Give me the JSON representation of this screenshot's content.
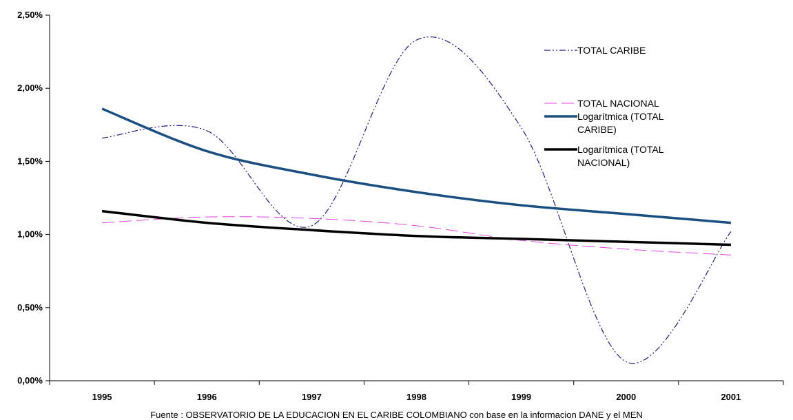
{
  "chart_data": {
    "type": "line",
    "categories": [
      "1995",
      "1996",
      "1997",
      "1998",
      "1999",
      "2000",
      "2001"
    ],
    "y_ticks": [
      "0,00%",
      "0,50%",
      "1,00%",
      "1,50%",
      "2,00%",
      "2,50%"
    ],
    "ylim": [
      0,
      2.5
    ],
    "grid": false,
    "legend_position": "right",
    "series": [
      {
        "name": "TOTAL CARIBE",
        "values": [
          1.66,
          1.71,
          1.06,
          2.33,
          1.73,
          0.13,
          1.02
        ],
        "color": "#1f1f7a",
        "style": "dash-dot-dot"
      },
      {
        "name": "TOTAL NACIONAL",
        "values": [
          1.08,
          1.12,
          1.11,
          1.06,
          0.96,
          0.9,
          0.86
        ],
        "color": "#e040e0",
        "style": "long-dash"
      },
      {
        "name": "Logarítmica (TOTAL CARIBE)",
        "name_lines": [
          "Logarítmica (TOTAL",
          "CARIBE)"
        ],
        "values": [
          1.86,
          1.57,
          1.41,
          1.29,
          1.2,
          1.14,
          1.08
        ],
        "color": "#1b4f82",
        "style": "solid-thick"
      },
      {
        "name": "Logarítmica (TOTAL NACIONAL)",
        "name_lines": [
          "Logarítmica (TOTAL",
          "NACIONAL)"
        ],
        "values": [
          1.16,
          1.08,
          1.03,
          0.99,
          0.97,
          0.95,
          0.93
        ],
        "color": "#000000",
        "style": "solid-thick"
      }
    ],
    "source": "Fuente : OBSERVATORIO DE LA EDUCACION EN EL CARIBE COLOMBIANO con base en la informacion DANE y el  MEN"
  }
}
